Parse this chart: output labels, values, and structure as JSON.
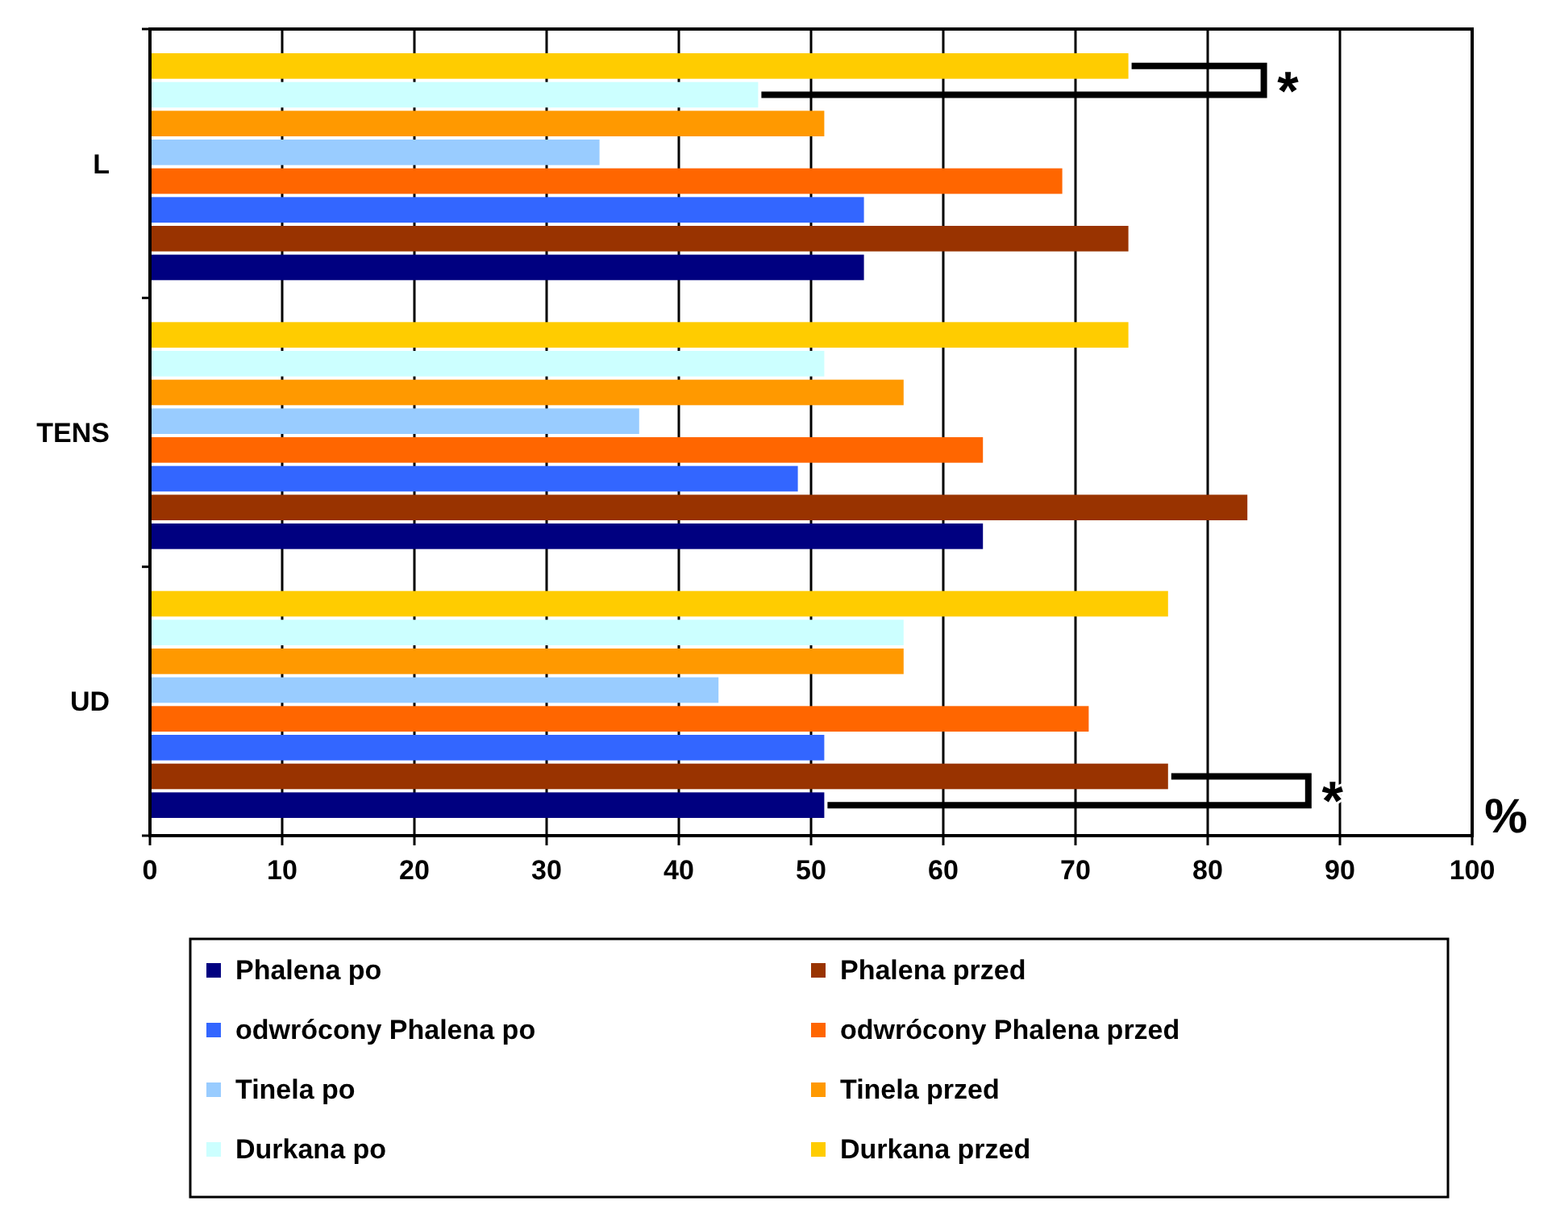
{
  "chart_data": {
    "type": "bar",
    "orientation": "horizontal",
    "xlabel": "%",
    "categories": [
      "L",
      "TENS",
      "UD"
    ],
    "series": [
      {
        "name": "Phalena po",
        "color": "#000080",
        "values": [
          54,
          63,
          51
        ]
      },
      {
        "name": "Phalena przed",
        "color": "#993300",
        "values": [
          74,
          83,
          77
        ]
      },
      {
        "name": "odwrócony Phalena po",
        "color": "#3366ff",
        "values": [
          54,
          49,
          51
        ]
      },
      {
        "name": "odwrócony Phalena przed",
        "color": "#ff6600",
        "values": [
          69,
          63,
          71
        ]
      },
      {
        "name": "Tinela po",
        "color": "#99ccff",
        "values": [
          34,
          37,
          43
        ]
      },
      {
        "name": "Tinela przed",
        "color": "#ff9900",
        "values": [
          51,
          57,
          57
        ]
      },
      {
        "name": "Durkana po",
        "color": "#ccffff",
        "values": [
          46,
          51,
          57
        ]
      },
      {
        "name": "Durkana przed",
        "color": "#ffcc00",
        "values": [
          74,
          74,
          77
        ]
      }
    ],
    "xlim": [
      0,
      100
    ],
    "xticks": [
      0,
      10,
      20,
      30,
      40,
      50,
      60,
      70,
      80,
      90,
      100
    ],
    "grid": "x",
    "legend": "bottom",
    "annotations": [
      "*",
      "*"
    ]
  }
}
